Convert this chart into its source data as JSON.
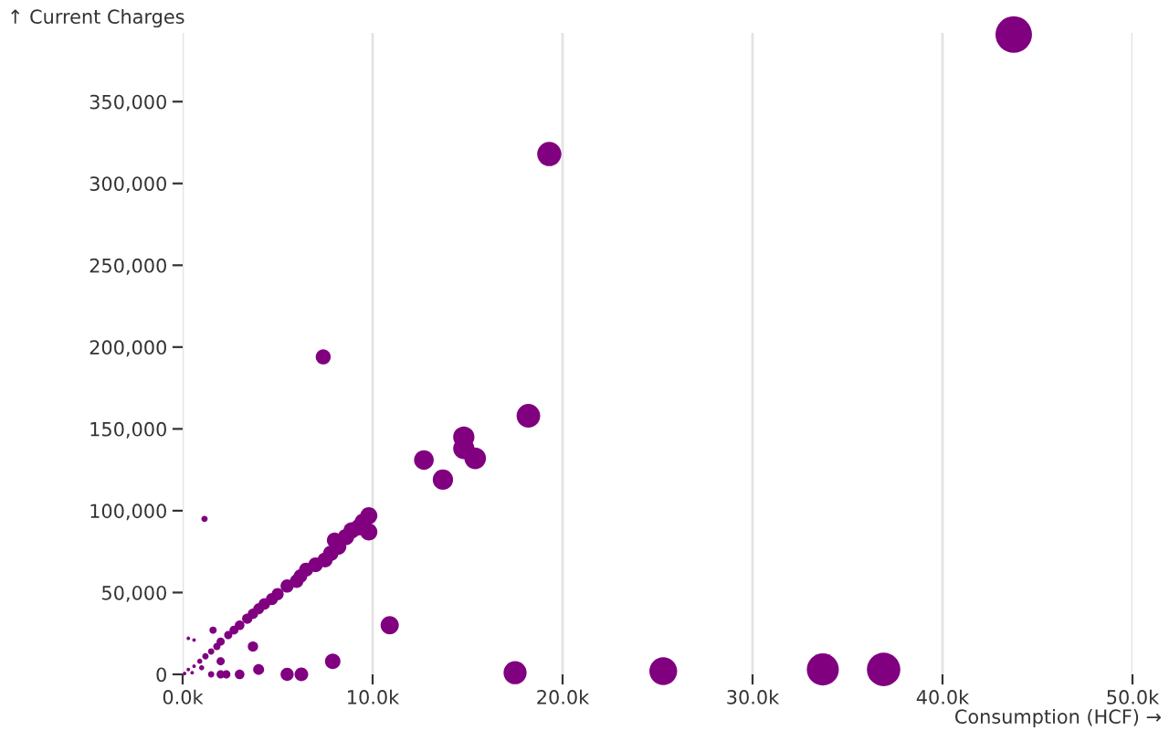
{
  "chart_data": {
    "type": "bubble",
    "xlabel": "Consumption (HCF) →",
    "ylabel": "↑ Current Charges",
    "x": [
      43750,
      19300,
      7400,
      18200,
      12700,
      13700,
      14800,
      14800,
      15400,
      10900,
      17500,
      25300,
      33700,
      36900,
      7900,
      6250,
      5500,
      4000,
      3000,
      3700,
      1150,
      1600,
      300,
      600,
      9800,
      9500,
      9300,
      9800,
      8900,
      8600,
      8000,
      8200,
      7800,
      7500,
      7000,
      6500,
      6200,
      6000,
      5500,
      5000,
      4700,
      4300,
      4000,
      3700,
      3400,
      3000,
      2700,
      2400,
      2000,
      1800,
      1500,
      1200,
      900,
      600,
      300,
      100,
      1500,
      2000,
      2300,
      1000,
      2000,
      500
    ],
    "series": [
      {
        "color": "#800080",
        "values": [
          391000,
          318000,
          194000,
          158000,
          131000,
          119000,
          145000,
          138000,
          132000,
          30000,
          1000,
          2000,
          3000,
          3000,
          8000,
          0,
          0,
          3000,
          0,
          17000,
          95000,
          27000,
          22000,
          21000,
          97000,
          93000,
          90000,
          87000,
          88000,
          84000,
          82000,
          78000,
          74000,
          70000,
          67000,
          64000,
          60000,
          57000,
          54000,
          49000,
          46000,
          43000,
          40000,
          37000,
          34000,
          30000,
          27000,
          24000,
          20000,
          17000,
          14000,
          11000,
          8000,
          5000,
          3000,
          500,
          0,
          0,
          0,
          4000,
          8000,
          1000
        ],
        "sizes": [
          1,
          0.44,
          0.17,
          0.42,
          0.29,
          0.31,
          0.34,
          0.34,
          0.35,
          0.25,
          0.4,
          0.58,
          0.77,
          0.84,
          0.18,
          0.14,
          0.13,
          0.09,
          0.07,
          0.08,
          0.03,
          0.04,
          0.01,
          0.01,
          0.22,
          0.22,
          0.21,
          0.22,
          0.2,
          0.2,
          0.18,
          0.19,
          0.18,
          0.17,
          0.16,
          0.15,
          0.14,
          0.14,
          0.13,
          0.11,
          0.11,
          0.1,
          0.09,
          0.08,
          0.08,
          0.07,
          0.06,
          0.05,
          0.05,
          0.04,
          0.03,
          0.03,
          0.02,
          0.01,
          0.01,
          0.01,
          0.03,
          0.05,
          0.05,
          0.02,
          0.05,
          0.01
        ]
      }
    ],
    "xlim": [
      0,
      50000
    ],
    "ylim": [
      0,
      392000
    ],
    "xticks": [
      {
        "value": 0,
        "label": "0.0k"
      },
      {
        "value": 10000,
        "label": "10.0k"
      },
      {
        "value": 20000,
        "label": "20.0k"
      },
      {
        "value": 30000,
        "label": "30.0k"
      },
      {
        "value": 40000,
        "label": "40.0k"
      },
      {
        "value": 50000,
        "label": "50.0k"
      }
    ],
    "yticks": [
      0,
      {
        "value": 50000,
        "label": "50,000"
      },
      {
        "value": 100000,
        "label": "100,000"
      },
      {
        "value": 150000,
        "label": "150,000"
      },
      {
        "value": 200000,
        "label": "200,000"
      },
      {
        "value": 250000,
        "label": "250,000"
      },
      {
        "value": 300000,
        "label": "300,000"
      },
      {
        "value": 350000,
        "label": "350,000"
      }
    ],
    "grid": "x",
    "legend": false
  }
}
